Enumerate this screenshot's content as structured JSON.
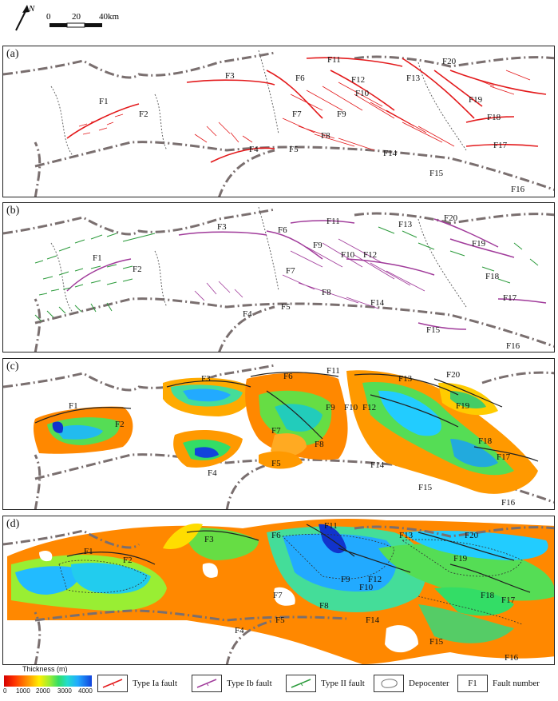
{
  "north": {
    "label": "N"
  },
  "scale": {
    "ticks": [
      "0",
      "20",
      "40km"
    ]
  },
  "panels": [
    {
      "label": "(a)"
    },
    {
      "label": "(b)"
    },
    {
      "label": "(c)"
    },
    {
      "label": "(d)"
    }
  ],
  "faults": [
    "F1",
    "F2",
    "F3",
    "F4",
    "F5",
    "F6",
    "F7",
    "F8",
    "F9",
    "F10",
    "F11",
    "F12",
    "F13",
    "F14",
    "F15",
    "F16",
    "F17",
    "F18",
    "F19",
    "F20"
  ],
  "legend": {
    "thickness_title": "Thickness (m)",
    "thickness_ticks": [
      "0",
      "1000",
      "2000",
      "3000",
      "4000"
    ],
    "items": [
      {
        "label": "Type Ia fault",
        "color": "#e31a1c"
      },
      {
        "label": "Type Ib fault",
        "color": "#a03a9a"
      },
      {
        "label": "Type II fault",
        "color": "#2a9a3a"
      },
      {
        "label": "Depocenter",
        "color": "#777777"
      },
      {
        "label": "Fault number",
        "sample": "F1"
      }
    ]
  },
  "colors": {
    "boundary": "#7a6f6f",
    "type_ia": "#e31a1c",
    "type_ib": "#a03a9a",
    "type_ii": "#2a9a3a"
  }
}
